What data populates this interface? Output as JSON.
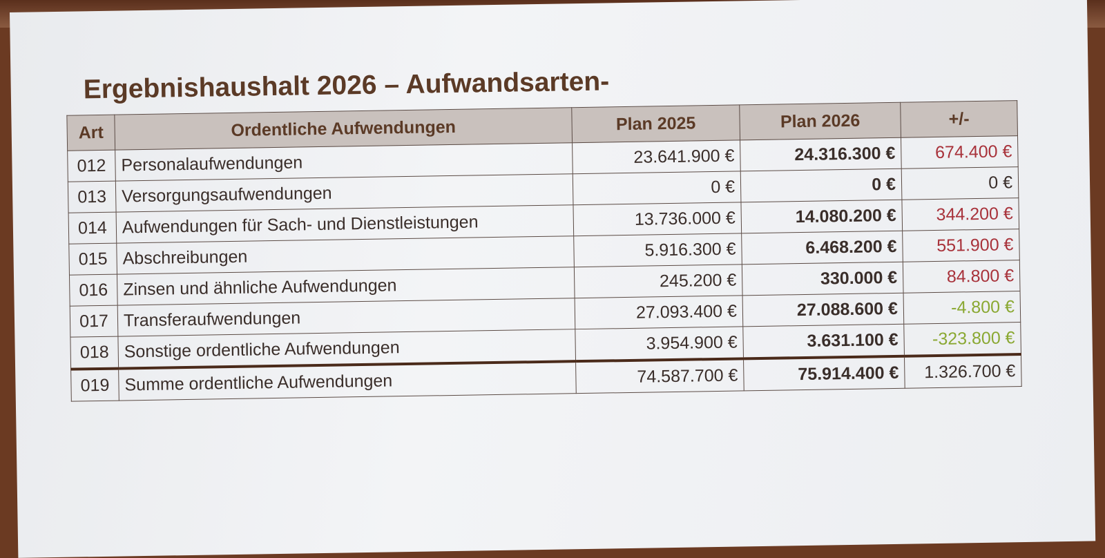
{
  "title": "Ergebnishaushalt 2026 – Aufwandsarten-",
  "columns": {
    "art": "Art",
    "desc": "Ordentliche Aufwendungen",
    "plan2025": "Plan 2025",
    "plan2026": "Plan 2026",
    "diff": "+/-"
  },
  "colors": {
    "increase": "#a8323a",
    "decrease": "#8aa832",
    "neutral": "#3a2e2a"
  },
  "rows": [
    {
      "art": "012",
      "desc": "Personalaufwendungen",
      "plan2025": "23.641.900 €",
      "plan2026": "24.316.300 €",
      "diff": "674.400 €",
      "trend": "increase"
    },
    {
      "art": "013",
      "desc": "Versorgungsaufwendungen",
      "plan2025": "0 €",
      "plan2026": "0 €",
      "diff": "0 €",
      "trend": "neutral"
    },
    {
      "art": "014",
      "desc": "Aufwendungen für Sach- und Dienstleistungen",
      "plan2025": "13.736.000 €",
      "plan2026": "14.080.200 €",
      "diff": "344.200 €",
      "trend": "increase"
    },
    {
      "art": "015",
      "desc": "Abschreibungen",
      "plan2025": "5.916.300 €",
      "plan2026": "6.468.200 €",
      "diff": "551.900 €",
      "trend": "increase"
    },
    {
      "art": "016",
      "desc": "Zinsen und ähnliche Aufwendungen",
      "plan2025": "245.200 €",
      "plan2026": "330.000 €",
      "diff": "84.800 €",
      "trend": "increase"
    },
    {
      "art": "017",
      "desc": "Transferaufwendungen",
      "plan2025": "27.093.400 €",
      "plan2026": "27.088.600 €",
      "diff": "-4.800 €",
      "trend": "decrease"
    },
    {
      "art": "018",
      "desc": "Sonstige ordentliche Aufwendungen",
      "plan2025": "3.954.900 €",
      "plan2026": "3.631.100 €",
      "diff": "-323.800 €",
      "trend": "decrease"
    }
  ],
  "total": {
    "art": "019",
    "desc": "Summe ordentliche Aufwendungen",
    "plan2025": "74.587.700 €",
    "plan2026": "75.914.400 €",
    "diff": "1.326.700 €",
    "trend": "neutral"
  }
}
